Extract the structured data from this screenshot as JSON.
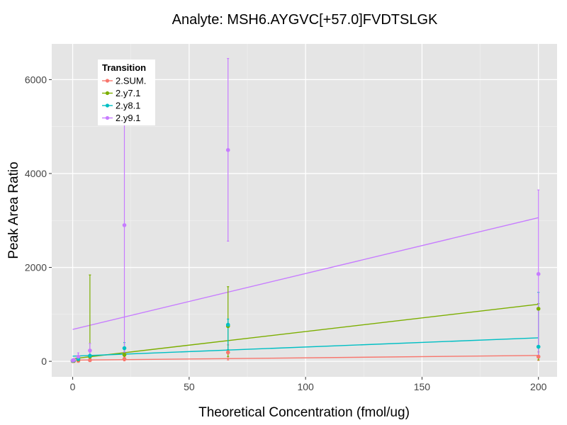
{
  "chart_data": {
    "type": "scatter",
    "title": "Analyte: MSH6.AYGVC[+57.0]FVDTSLGK",
    "xlabel": "Theoretical Concentration (fmol/ug)",
    "ylabel": "Peak Area Ratio",
    "xlim": [
      -9,
      208
    ],
    "ylim": [
      -330,
      6760
    ],
    "x_ticks": [
      0,
      50,
      100,
      150,
      200
    ],
    "x_tick_labels": [
      "0",
      "50",
      "100",
      "150",
      "200"
    ],
    "y_ticks": [
      0,
      2000,
      4000,
      6000
    ],
    "y_tick_labels": [
      "0",
      "2000",
      "4000",
      "6000"
    ],
    "grid": true,
    "legend": {
      "title": "Transition",
      "position": "top-left",
      "entries": [
        "2.SUM.",
        "2.y7.1",
        "2.y8.1",
        "2.y9.1"
      ]
    },
    "series": [
      {
        "name": "2.SUM.",
        "color": "#F8766D",
        "fit": {
          "intercept": 25,
          "slope": 0.5
        },
        "points": [
          {
            "x": 0,
            "y": 5,
            "ymin": 0,
            "ymax": 15
          },
          {
            "x": 0.5,
            "y": 6,
            "ymin": 0,
            "ymax": 15
          },
          {
            "x": 2.4,
            "y": 10,
            "ymin": 0,
            "ymax": 25
          },
          {
            "x": 7.4,
            "y": 25,
            "ymin": 5,
            "ymax": 45
          },
          {
            "x": 22.2,
            "y": 50,
            "ymin": 10,
            "ymax": 90
          },
          {
            "x": 66.7,
            "y": 190,
            "ymin": 30,
            "ymax": 350
          },
          {
            "x": 200,
            "y": 100,
            "ymin": 20,
            "ymax": 200
          }
        ]
      },
      {
        "name": "2.y7.1",
        "color": "#7CAE00",
        "fit": {
          "intercept": 55,
          "slope": 5.8
        },
        "points": [
          {
            "x": 0,
            "y": 10,
            "ymin": 0,
            "ymax": 20
          },
          {
            "x": 0.5,
            "y": 15,
            "ymin": 0,
            "ymax": 30
          },
          {
            "x": 2.4,
            "y": 40,
            "ymin": 0,
            "ymax": 90
          },
          {
            "x": 7.4,
            "y": 100,
            "ymin": 50,
            "ymax": 1840
          },
          {
            "x": 22.2,
            "y": 140,
            "ymin": 40,
            "ymax": 250
          },
          {
            "x": 66.7,
            "y": 750,
            "ymin": 100,
            "ymax": 1590
          },
          {
            "x": 200,
            "y": 1120,
            "ymin": 30,
            "ymax": 1230
          }
        ]
      },
      {
        "name": "2.y8.1",
        "color": "#00BFC4",
        "fit": {
          "intercept": 110,
          "slope": 1.95
        },
        "points": [
          {
            "x": 0,
            "y": 15,
            "ymin": 0,
            "ymax": 30
          },
          {
            "x": 0.5,
            "y": 20,
            "ymin": 0,
            "ymax": 40
          },
          {
            "x": 2.4,
            "y": 50,
            "ymin": 0,
            "ymax": 100
          },
          {
            "x": 7.4,
            "y": 120,
            "ymin": 60,
            "ymax": 200
          },
          {
            "x": 22.2,
            "y": 280,
            "ymin": 150,
            "ymax": 400
          },
          {
            "x": 66.7,
            "y": 780,
            "ymin": 250,
            "ymax": 900
          },
          {
            "x": 200,
            "y": 310,
            "ymin": 100,
            "ymax": 1470
          }
        ]
      },
      {
        "name": "2.y9.1",
        "color": "#C77CFF",
        "fit": {
          "intercept": 680,
          "slope": 11.9
        },
        "points": [
          {
            "x": 0,
            "y": 20,
            "ymin": 0,
            "ymax": 40
          },
          {
            "x": 0.5,
            "y": 30,
            "ymin": 0,
            "ymax": 60
          },
          {
            "x": 2.4,
            "y": 100,
            "ymin": 20,
            "ymax": 180
          },
          {
            "x": 7.4,
            "y": 230,
            "ymin": 100,
            "ymax": 380
          },
          {
            "x": 22.2,
            "y": 2900,
            "ymin": 200,
            "ymax": 5700
          },
          {
            "x": 66.7,
            "y": 4500,
            "ymin": 2560,
            "ymax": 6450
          },
          {
            "x": 200,
            "y": 1860,
            "ymin": 80,
            "ymax": 3650
          }
        ]
      }
    ]
  }
}
